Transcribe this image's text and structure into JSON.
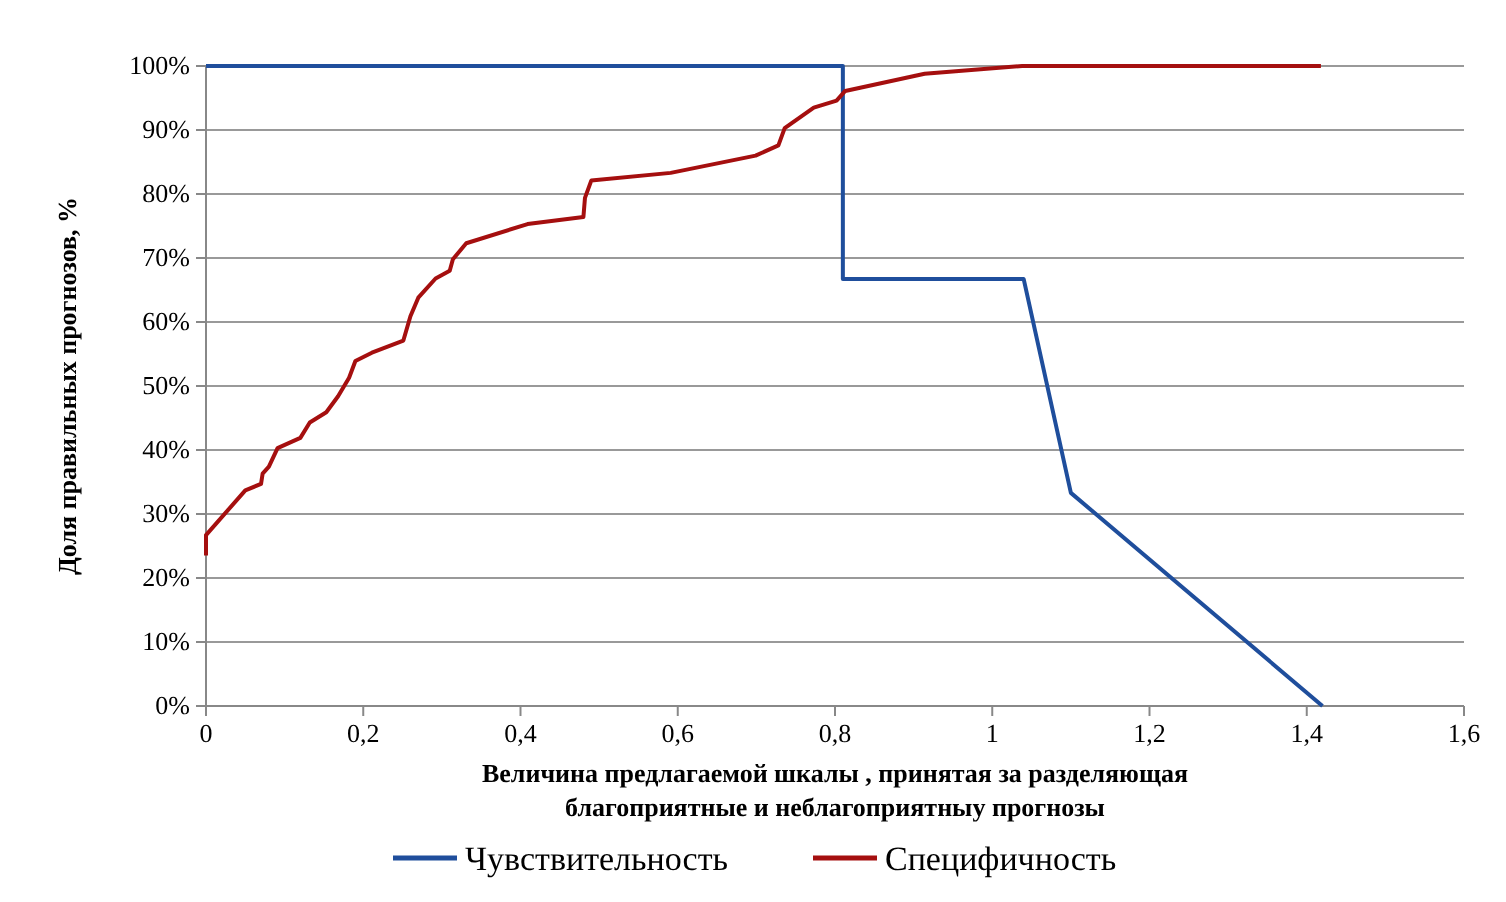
{
  "chart_data": {
    "type": "line",
    "xlabel": "Величина предлагаемой шкалы , принятая за разделяющая благоприятные и неблагоприятныу прогнозы",
    "ylabel": "Доля правильных прогнозов, %",
    "xlim": [
      0,
      1.6
    ],
    "xticks": [
      {
        "value": 0,
        "label": "0"
      },
      {
        "value": 0.2,
        "label": "0,2"
      },
      {
        "value": 0.4,
        "label": "0,4"
      },
      {
        "value": 0.6,
        "label": "0,6"
      },
      {
        "value": 0.8,
        "label": "0,8"
      },
      {
        "value": 1,
        "label": "1"
      },
      {
        "value": 1.2,
        "label": "1,2"
      },
      {
        "value": 1.4,
        "label": "1,4"
      },
      {
        "value": 1.6,
        "label": "1,6"
      }
    ],
    "ylim": [
      0,
      100
    ],
    "yticks": [
      {
        "value": 0,
        "label": "0%"
      },
      {
        "value": 10,
        "label": "10%"
      },
      {
        "value": 20,
        "label": "20%"
      },
      {
        "value": 30,
        "label": "30%"
      },
      {
        "value": 40,
        "label": "40%"
      },
      {
        "value": 50,
        "label": "50%"
      },
      {
        "value": 60,
        "label": "60%"
      },
      {
        "value": 70,
        "label": "70%"
      },
      {
        "value": 80,
        "label": "80%"
      },
      {
        "value": 90,
        "label": "90%"
      },
      {
        "value": 100,
        "label": "100%"
      }
    ],
    "grid": "y",
    "legend": "bottom",
    "marker": "none",
    "line_style": "solid",
    "series": [
      {
        "name": "Чувствительность",
        "color": "#1f4e9c",
        "x": [
          0,
          0.81,
          0.81,
          1.04,
          1.1,
          1.42
        ],
        "values": [
          100,
          100,
          66.7,
          66.7,
          33.3,
          0
        ]
      },
      {
        "name": "Специфичность",
        "color": "#a50f0f",
        "x": [
          0,
          0,
          0.05,
          0.07,
          0.072,
          0.08,
          0.091,
          0.12,
          0.132,
          0.153,
          0.168,
          0.182,
          0.19,
          0.211,
          0.251,
          0.26,
          0.27,
          0.292,
          0.31,
          0.314,
          0.331,
          0.409,
          0.48,
          0.482,
          0.49,
          0.591,
          0.699,
          0.728,
          0.736,
          0.773,
          0.802,
          0.813,
          0.914,
          1.038,
          1.418
        ],
        "values": [
          23.5,
          26.7,
          33.7,
          34.7,
          36.3,
          37.4,
          40.3,
          41.9,
          44.3,
          45.9,
          48.4,
          51.3,
          53.9,
          55.2,
          57.1,
          60.9,
          63.8,
          66.8,
          68,
          69.8,
          72.3,
          75.3,
          76.4,
          79.4,
          82.1,
          83.3,
          86,
          87.6,
          90.3,
          93.5,
          94.6,
          96.1,
          98.8,
          100,
          100
        ]
      }
    ]
  }
}
